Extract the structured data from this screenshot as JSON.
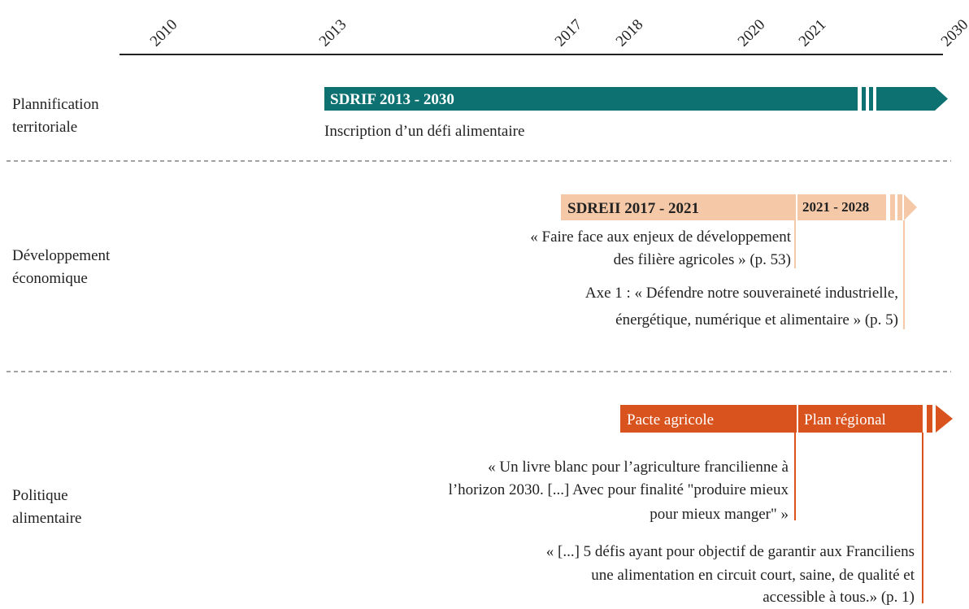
{
  "axis": {
    "years": [
      "2010",
      "2013",
      "2017",
      "2018",
      "2020",
      "2021",
      "2030"
    ]
  },
  "rows": [
    {
      "label": [
        "Plannification",
        "territoriale"
      ],
      "bars": [
        "SDRIF 2013 - 2030"
      ],
      "notes": [
        [
          "Inscription d’un défi alimentaire"
        ]
      ]
    },
    {
      "label": [
        "Développement",
        "économique"
      ],
      "bars": [
        "SDREII 2017 - 2021",
        "2021 - 2028"
      ],
      "notes": [
        [
          "« Faire face aux enjeux de développement",
          "des filière agricoles » (p. 53)"
        ],
        [
          "Axe 1 : « Défendre notre souveraineté industrielle,",
          "énergétique, numérique et alimentaire » (p. 5)"
        ]
      ]
    },
    {
      "label": [
        "Politique",
        "alimentaire"
      ],
      "bars": [
        "Pacte agricole",
        "Plan régional"
      ],
      "notes": [
        [
          "« Un livre blanc pour l’agriculture francilienne à",
          "l’horizon 2030. [...] Avec pour finalité \"produire mieux",
          "pour mieux manger\" »"
        ],
        [
          "« [...] 5 défis ayant pour objectif de garantir aux Franciliens",
          "une alimentation en circuit court, saine, de qualité et",
          "accessible à tous.» (p. 1)"
        ]
      ]
    }
  ]
}
